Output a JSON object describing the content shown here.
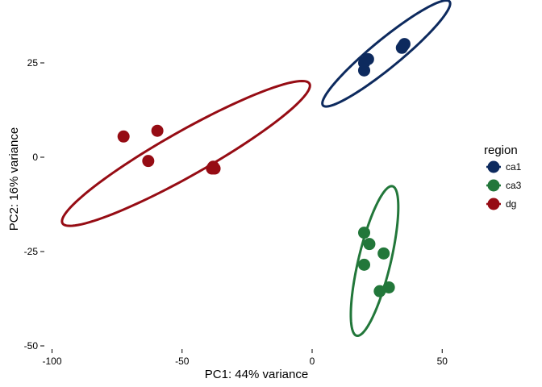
{
  "chart_data": {
    "type": "scatter",
    "title": "",
    "xlabel": "PC1: 44% variance",
    "ylabel": "PC2: 16% variance",
    "xlim": [
      -100,
      50
    ],
    "ylim": [
      -50,
      35
    ],
    "x_ticks": [
      -100,
      -50,
      0,
      50
    ],
    "y_ticks": [
      -50,
      -25,
      0,
      25
    ],
    "x_tick_labels": [
      "-100",
      "-50",
      "0",
      "50"
    ],
    "y_tick_labels": [
      "-50",
      "-25",
      "0",
      "25"
    ],
    "grid": false,
    "legend": {
      "title": "region",
      "position": "right"
    },
    "series": [
      {
        "name": "ca1",
        "color": "#0d2a5e",
        "points": [
          {
            "x": 20.0,
            "y": 23.0
          },
          {
            "x": 20.0,
            "y": 25.0
          },
          {
            "x": 21.5,
            "y": 26.0
          },
          {
            "x": 34.5,
            "y": 29.0
          },
          {
            "x": 35.0,
            "y": 29.5
          },
          {
            "x": 35.5,
            "y": 30.0
          }
        ],
        "ellipse": {
          "cx": 28.5,
          "cy": 27.5,
          "rx": 28.0,
          "ry": 4.2,
          "angle_deg": 29
        }
      },
      {
        "name": "ca3",
        "color": "#22773a",
        "points": [
          {
            "x": 20.0,
            "y": -20.0
          },
          {
            "x": 22.0,
            "y": -23.0
          },
          {
            "x": 27.5,
            "y": -25.5
          },
          {
            "x": 20.0,
            "y": -28.5
          },
          {
            "x": 29.5,
            "y": -34.5
          },
          {
            "x": 26.0,
            "y": -35.5
          }
        ],
        "ellipse": {
          "cx": 24.0,
          "cy": -27.5,
          "rx": 21.0,
          "ry": 6.0,
          "angle_deg": 70
        }
      },
      {
        "name": "dg",
        "color": "#960c14",
        "points": [
          {
            "x": -72.5,
            "y": 5.5
          },
          {
            "x": -59.5,
            "y": 7.0
          },
          {
            "x": -63.0,
            "y": -1.0
          },
          {
            "x": -38.0,
            "y": -2.5
          },
          {
            "x": -37.5,
            "y": -3.0
          },
          {
            "x": -38.5,
            "y": -3.0
          }
        ],
        "ellipse": {
          "cx": -48.5,
          "cy": 1.0,
          "rx": 51.0,
          "ry": 6.3,
          "angle_deg": 21
        }
      }
    ]
  }
}
